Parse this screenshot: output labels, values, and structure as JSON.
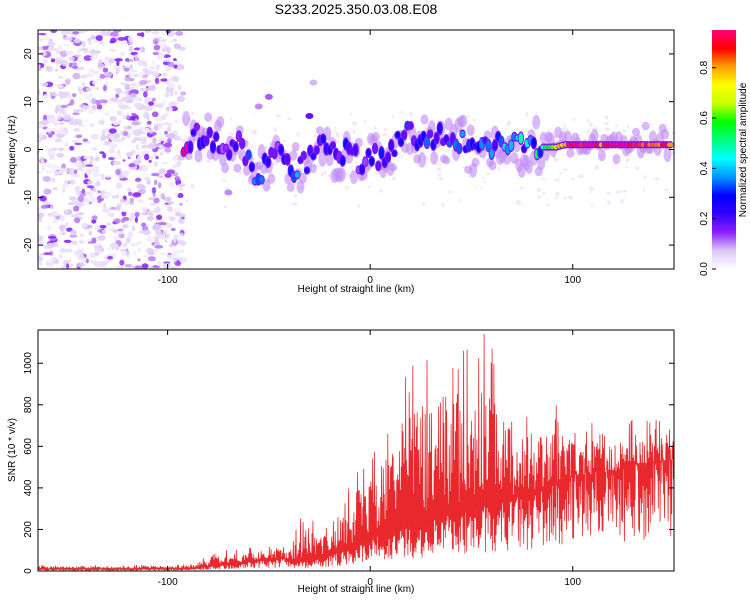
{
  "title": "S233.2025.350.03.08.E08",
  "chart_data": [
    {
      "type": "heatmap",
      "title": "S233.2025.350.03.08.E08",
      "xlabel": "Height of straight line (km)",
      "ylabel": "Frequency (Hz)",
      "xlim": [
        -164,
        150
      ],
      "ylim": [
        -25,
        25
      ],
      "xticks": [
        -100,
        0,
        100
      ],
      "xtick_labels": [
        "-100",
        "0",
        "100"
      ],
      "yticks": [
        -20,
        -10,
        0,
        10,
        20
      ],
      "ytick_labels": [
        "-20",
        "-10",
        "0",
        "10",
        "20"
      ],
      "colorbar": {
        "label": "Normalized spectral amplitude",
        "range": [
          0,
          0.95
        ],
        "ticks": [
          0.0,
          0.2,
          0.4,
          0.6,
          0.8
        ],
        "tick_labels": [
          "0.0",
          "0.2",
          "0.4",
          "0.6",
          "0.8"
        ],
        "colors": [
          "#ffffff",
          "#dcc8f5",
          "#8c1eff",
          "#3200ff",
          "#0000ff",
          "#0096ff",
          "#00ffff",
          "#00ff80",
          "#00ff00",
          "#c8ff00",
          "#ffff00",
          "#ffa000",
          "#ff0000",
          "#ff0080"
        ]
      },
      "noise_region": {
        "x": [
          -164,
          -92
        ],
        "y": [
          -25,
          25
        ],
        "amplitude": 0.08
      },
      "ridge_points": [
        {
          "x": -90,
          "y": 1.5,
          "v": 0.22
        },
        {
          "x": -85,
          "y": 3.0,
          "v": 0.25
        },
        {
          "x": -80,
          "y": 3.5,
          "v": 0.2
        },
        {
          "x": -75,
          "y": 1.5,
          "v": 0.18
        },
        {
          "x": -70,
          "y": -1.0,
          "v": 0.22
        },
        {
          "x": -65,
          "y": 1.0,
          "v": 0.2
        },
        {
          "x": -60,
          "y": -3.0,
          "v": 0.25
        },
        {
          "x": -55,
          "y": -6.0,
          "v": 0.28
        },
        {
          "x": -50,
          "y": -2.0,
          "v": 0.22
        },
        {
          "x": -45,
          "y": 1.0,
          "v": 0.18
        },
        {
          "x": -40,
          "y": -5.0,
          "v": 0.26
        },
        {
          "x": -35,
          "y": -4.0,
          "v": 0.3
        },
        {
          "x": -30,
          "y": -2.0,
          "v": 0.2
        },
        {
          "x": -25,
          "y": 3.0,
          "v": 0.24
        },
        {
          "x": -20,
          "y": 1.0,
          "v": 0.2
        },
        {
          "x": -15,
          "y": -2.0,
          "v": 0.22
        },
        {
          "x": -10,
          "y": 0.0,
          "v": 0.25
        },
        {
          "x": -5,
          "y": -3.0,
          "v": 0.2
        },
        {
          "x": 0,
          "y": -1.0,
          "v": 0.22
        },
        {
          "x": 5,
          "y": -2.0,
          "v": 0.25
        },
        {
          "x": 10,
          "y": 0.0,
          "v": 0.22
        },
        {
          "x": 15,
          "y": 3.0,
          "v": 0.26
        },
        {
          "x": 20,
          "y": 3.5,
          "v": 0.22
        },
        {
          "x": 25,
          "y": 2.0,
          "v": 0.28
        },
        {
          "x": 30,
          "y": 2.0,
          "v": 0.25
        },
        {
          "x": 35,
          "y": 3.0,
          "v": 0.22
        },
        {
          "x": 40,
          "y": 1.0,
          "v": 0.3
        },
        {
          "x": 45,
          "y": 1.5,
          "v": 0.35
        },
        {
          "x": 50,
          "y": 0.0,
          "v": 0.28
        },
        {
          "x": 55,
          "y": 0.5,
          "v": 0.3
        },
        {
          "x": 60,
          "y": 0.5,
          "v": 0.33
        },
        {
          "x": 65,
          "y": 1.0,
          "v": 0.28
        },
        {
          "x": 70,
          "y": 1.0,
          "v": 0.38
        },
        {
          "x": 75,
          "y": 0.5,
          "v": 0.35
        },
        {
          "x": 80,
          "y": 0.5,
          "v": 0.4
        },
        {
          "x": 85,
          "y": 0.5,
          "v": 0.45
        },
        {
          "x": 88,
          "y": 0.5,
          "v": 0.55
        },
        {
          "x": 92,
          "y": 0.5,
          "v": 0.65
        },
        {
          "x": 96,
          "y": 1.0,
          "v": 0.8
        },
        {
          "x": 100,
          "y": 1.0,
          "v": 0.95
        },
        {
          "x": 105,
          "y": 1.0,
          "v": 0.9
        },
        {
          "x": 110,
          "y": 1.0,
          "v": 0.95
        },
        {
          "x": 115,
          "y": 1.0,
          "v": 0.85
        },
        {
          "x": 120,
          "y": 1.0,
          "v": 0.95
        },
        {
          "x": 125,
          "y": 1.0,
          "v": 0.9
        },
        {
          "x": 130,
          "y": 1.0,
          "v": 0.95
        },
        {
          "x": 135,
          "y": 1.0,
          "v": 0.9
        },
        {
          "x": 140,
          "y": 1.0,
          "v": 0.95
        },
        {
          "x": 145,
          "y": 1.0,
          "v": 0.9
        }
      ],
      "branches": [
        {
          "x": -50,
          "y": 11,
          "v": 0.12
        },
        {
          "x": -55,
          "y": 9,
          "v": 0.1
        },
        {
          "x": -30,
          "y": 7,
          "v": 0.18
        },
        {
          "x": -28,
          "y": 14,
          "v": 0.08
        },
        {
          "x": -70,
          "y": -9,
          "v": 0.1
        }
      ]
    },
    {
      "type": "line",
      "xlabel": "Height of straight line (km)",
      "ylabel": "SNR (10 * v/v)",
      "xlim": [
        -164,
        150
      ],
      "ylim": [
        0,
        1160
      ],
      "xticks": [
        -100,
        0,
        100
      ],
      "xtick_labels": [
        "-100",
        "0",
        "100"
      ],
      "yticks": [
        0,
        200,
        400,
        600,
        800,
        1000
      ],
      "ytick_labels": [
        "0",
        "200",
        "400",
        "600",
        "800",
        "1000"
      ],
      "series": [
        {
          "name": "SNR",
          "color": "#e8282d",
          "x": [
            -164,
            -150,
            -140,
            -130,
            -120,
            -110,
            -100,
            -95,
            -90,
            -85,
            -80,
            -75,
            -70,
            -65,
            -60,
            -55,
            -50,
            -45,
            -40,
            -35,
            -30,
            -25,
            -20,
            -15,
            -10,
            -5,
            0,
            5,
            10,
            15,
            20,
            25,
            30,
            35,
            40,
            45,
            50,
            55,
            60,
            65,
            70,
            75,
            80,
            85,
            90,
            95,
            100,
            105,
            110,
            115,
            120,
            125,
            130,
            135,
            140,
            145,
            150
          ],
          "y_low": [
            8,
            8,
            8,
            9,
            8,
            8,
            9,
            10,
            10,
            12,
            20,
            25,
            30,
            35,
            40,
            45,
            50,
            55,
            50,
            40,
            45,
            60,
            70,
            80,
            100,
            120,
            150,
            160,
            170,
            180,
            190,
            200,
            220,
            230,
            250,
            260,
            270,
            280,
            300,
            310,
            320,
            330,
            340,
            360,
            380,
            400,
            420,
            430,
            440,
            450,
            460,
            470,
            480,
            490,
            490,
            500,
            520
          ],
          "y_high": [
            30,
            28,
            30,
            25,
            28,
            30,
            25,
            30,
            40,
            55,
            70,
            90,
            105,
            110,
            115,
            120,
            130,
            145,
            110,
            250,
            280,
            210,
            250,
            310,
            450,
            560,
            550,
            680,
            720,
            960,
            1040,
            1080,
            1160,
            1120,
            1090,
            1120,
            1050,
            1170,
            1080,
            950,
            890,
            810,
            820,
            760,
            820,
            760,
            720,
            690,
            720,
            660,
            700,
            680,
            740,
            720,
            780,
            690,
            680
          ]
        }
      ]
    }
  ]
}
